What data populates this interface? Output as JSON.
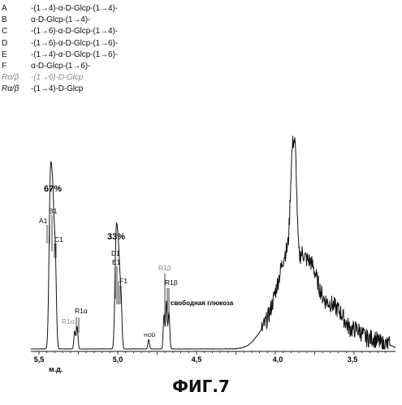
{
  "legend": [
    {
      "code": "A",
      "desc": "-(1→4)-α-D-Glcp-(1→4)-",
      "style": "normal"
    },
    {
      "code": "B",
      "desc": "α-D-Glcp-(1→4)-",
      "style": "normal"
    },
    {
      "code": "C",
      "desc": "-(1→6)-α-D-Glcp-(1→4)-",
      "style": "normal"
    },
    {
      "code": "D",
      "desc": "-(1→6)-α-D-Glcp-(1→6)-",
      "style": "normal"
    },
    {
      "code": "E",
      "desc": "-(1→4)-α-D-Glcp-(1→6)-",
      "style": "normal"
    },
    {
      "code": "F",
      "desc": "α-D-Glcp-(1→6)-",
      "style": "normal"
    },
    {
      "code": "Rα/β",
      "desc": "-(1→6)-D-Glcp",
      "style": "gray"
    },
    {
      "code": "Rα/β",
      "desc": "-(1→4)-D-Glcp",
      "style": "dark"
    }
  ],
  "spectrum": {
    "x_tick_labels": [
      "5,5",
      "5,0",
      "4,5",
      "4,0",
      "3,5"
    ],
    "x_unit": "м.д.",
    "xlim": [
      5.56,
      3.17
    ],
    "peak_labels": {
      "p67": "67%",
      "p33": "33%",
      "A1": "A1",
      "B1": "B1",
      "C1": "C1",
      "R1a_gray": "R1α",
      "R1a": "R1α",
      "D1": "D1",
      "E1": "E1",
      "F1": "F1",
      "HOD": "HOD",
      "R1b_gray": "R1β",
      "R1b": "R1β",
      "free_glucose": "свободная глюкоза"
    }
  },
  "caption": "ФИГ.7"
}
